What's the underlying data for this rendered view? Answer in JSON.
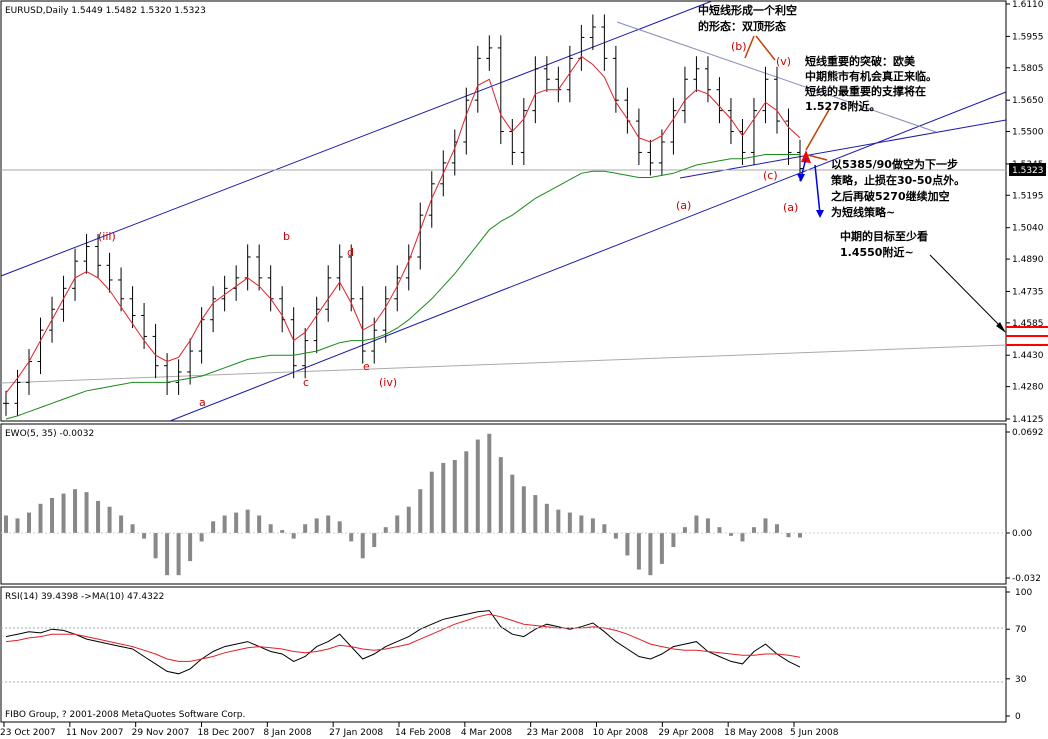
{
  "chart_data": [
    {
      "type": "ohlc",
      "title": "EURUSD,Daily  1.5449 1.5482 1.5320 1.5323",
      "ylim": [
        1.4125,
        1.611
      ],
      "yticks": [
        "1.6110",
        "1.5955",
        "1.5805",
        "1.5650",
        "1.5500",
        "1.5345",
        "1.5195",
        "1.5040",
        "1.4890",
        "1.4735",
        "1.4585",
        "1.4430",
        "1.4280",
        "1.4125"
      ],
      "current_price": "1.5323",
      "x_tick_labels": [
        "23 Oct 2007",
        "11 Nov 2007",
        "29 Nov 2007",
        "18 Dec 2007",
        "8 Jan 2008",
        "27 Jan 2008",
        "14 Feb 2008",
        "4 Mar 2008",
        "23 Mar 2008",
        "10 Apr 2008",
        "29 Apr 2008",
        "18 May 2008",
        "5 Jun 2008"
      ],
      "close_path": [
        1.42,
        1.43,
        1.44,
        1.455,
        1.465,
        1.475,
        1.488,
        1.495,
        1.486,
        1.479,
        1.47,
        1.462,
        1.452,
        1.438,
        1.43,
        1.435,
        1.445,
        1.46,
        1.47,
        1.475,
        1.48,
        1.49,
        1.48,
        1.47,
        1.46,
        1.438,
        1.45,
        1.465,
        1.48,
        1.49,
        1.47,
        1.445,
        1.455,
        1.47,
        1.48,
        1.49,
        1.51,
        1.525,
        1.535,
        1.545,
        1.565,
        1.585,
        1.59,
        1.55,
        1.54,
        1.56,
        1.58,
        1.575,
        1.57,
        1.585,
        1.595,
        1.6,
        1.585,
        1.565,
        1.555,
        1.54,
        1.535,
        1.545,
        1.56,
        1.575,
        1.58,
        1.57,
        1.56,
        1.55,
        1.54,
        1.56,
        1.575,
        1.555,
        1.54,
        1.5323
      ],
      "ma_red": [
        1.425,
        1.432,
        1.44,
        1.45,
        1.46,
        1.47,
        1.48,
        1.483,
        1.48,
        1.474,
        1.466,
        1.458,
        1.45,
        1.443,
        1.44,
        1.442,
        1.45,
        1.46,
        1.468,
        1.472,
        1.476,
        1.48,
        1.476,
        1.47,
        1.462,
        1.45,
        1.454,
        1.462,
        1.47,
        1.478,
        1.468,
        1.455,
        1.458,
        1.466,
        1.476,
        1.488,
        1.503,
        1.518,
        1.53,
        1.542,
        1.558,
        1.572,
        1.575,
        1.558,
        1.55,
        1.556,
        1.568,
        1.57,
        1.57,
        1.578,
        1.586,
        1.582,
        1.576,
        1.564,
        1.556,
        1.547,
        1.545,
        1.548,
        1.556,
        1.565,
        1.57,
        1.568,
        1.562,
        1.556,
        1.548,
        1.556,
        1.564,
        1.56,
        1.552,
        1.547
      ],
      "ma_green": [
        1.4125,
        1.414,
        1.416,
        1.418,
        1.42,
        1.422,
        1.424,
        1.426,
        1.427,
        1.428,
        1.429,
        1.43,
        1.43,
        1.43,
        1.43,
        1.431,
        1.432,
        1.433,
        1.435,
        1.437,
        1.439,
        1.441,
        1.442,
        1.443,
        1.443,
        1.443,
        1.444,
        1.445,
        1.447,
        1.449,
        1.45,
        1.45,
        1.451,
        1.453,
        1.456,
        1.46,
        1.465,
        1.47,
        1.476,
        1.482,
        1.489,
        1.496,
        1.503,
        1.507,
        1.51,
        1.514,
        1.518,
        1.521,
        1.524,
        1.527,
        1.53,
        1.531,
        1.531,
        1.53,
        1.529,
        1.528,
        1.528,
        1.529,
        1.53,
        1.532,
        1.534,
        1.535,
        1.536,
        1.537,
        1.537,
        1.538,
        1.539,
        1.539,
        1.539,
        1.539
      ],
      "wave_labels": [
        "(iii)",
        "b",
        "d",
        "c",
        "e",
        "(iv)",
        "a",
        "(a)",
        "(b)",
        "(c)",
        "(a)",
        "(v)"
      ],
      "annotations": [
        "中短线形成一个利空",
        "的形态：双顶形态",
        "短线重要的突破：欧美",
        "中期熊市有机会真正来临。",
        "短线的最重要的支撑将在",
        "1.5278附近。",
        "以5385/90做空为下一步",
        "策略，止损在30-50点外。",
        "之后再破5270继续加空",
        "为短线策略~",
        "中期的目标至少看",
        "1.4550附近~"
      ]
    },
    {
      "type": "bar",
      "title": "EWO(5, 35) -0.0032",
      "ylim": [
        -0.032,
        0.0692
      ],
      "yticks": [
        "0.0692",
        "0.00",
        "-0.032"
      ],
      "values": [
        0.012,
        0.01,
        0.014,
        0.02,
        0.024,
        0.027,
        0.03,
        0.028,
        0.022,
        0.018,
        0.012,
        0.006,
        -0.004,
        -0.018,
        -0.03,
        -0.03,
        -0.02,
        -0.006,
        0.008,
        0.012,
        0.014,
        0.016,
        0.012,
        0.006,
        0.002,
        -0.004,
        0.006,
        0.01,
        0.012,
        0.008,
        -0.006,
        -0.018,
        -0.01,
        0.004,
        0.012,
        0.018,
        0.03,
        0.042,
        0.048,
        0.05,
        0.056,
        0.064,
        0.068,
        0.052,
        0.04,
        0.032,
        0.026,
        0.02,
        0.016,
        0.014,
        0.012,
        0.01,
        0.006,
        -0.004,
        -0.016,
        -0.026,
        -0.03,
        -0.022,
        -0.01,
        0.004,
        0.012,
        0.01,
        0.004,
        -0.002,
        -0.006,
        0.004,
        0.01,
        0.006,
        -0.003,
        -0.0032
      ]
    },
    {
      "type": "line",
      "title": "RSI(14) 39.4398  ->MA(10) 47.4322",
      "ylim": [
        0,
        100
      ],
      "yticks": [
        "100",
        "70",
        "30",
        "0"
      ],
      "rsi": [
        64,
        66,
        68,
        67,
        70,
        69,
        66,
        62,
        60,
        58,
        56,
        54,
        48,
        42,
        36,
        34,
        38,
        46,
        52,
        56,
        58,
        60,
        56,
        52,
        50,
        44,
        48,
        56,
        60,
        66,
        56,
        46,
        50,
        56,
        60,
        64,
        70,
        74,
        78,
        80,
        82,
        84,
        85,
        72,
        66,
        64,
        70,
        74,
        72,
        70,
        72,
        75,
        68,
        60,
        54,
        48,
        46,
        50,
        56,
        58,
        60,
        52,
        48,
        44,
        42,
        52,
        58,
        50,
        44,
        39.44
      ],
      "rsi_ma": [
        60,
        61,
        63,
        64,
        66,
        66,
        66,
        64,
        62,
        60,
        58,
        56,
        53,
        50,
        46,
        44,
        44,
        46,
        48,
        51,
        53,
        55,
        56,
        55,
        54,
        52,
        51,
        52,
        54,
        57,
        56,
        54,
        53,
        54,
        56,
        58,
        62,
        66,
        70,
        74,
        77,
        80,
        82,
        80,
        77,
        74,
        73,
        72,
        71,
        71,
        71,
        72,
        71,
        69,
        66,
        62,
        58,
        56,
        54,
        53,
        53,
        52,
        51,
        50,
        49,
        49,
        50,
        50,
        49,
        47.43
      ]
    }
  ],
  "footer": {
    "copyright": "FIBO Group, ? 2001-2008 MetaQuotes Software Corp."
  },
  "colors": {
    "candle": "#000000",
    "ma_fast": "#e0202a",
    "ma_slow": "#1a8a1a",
    "channel": "#1a1aaa",
    "wave_label": "#cc0000",
    "target_line": "#ff0000",
    "ewo_bar": "#888888",
    "rsi_ma": "#e0202a"
  }
}
